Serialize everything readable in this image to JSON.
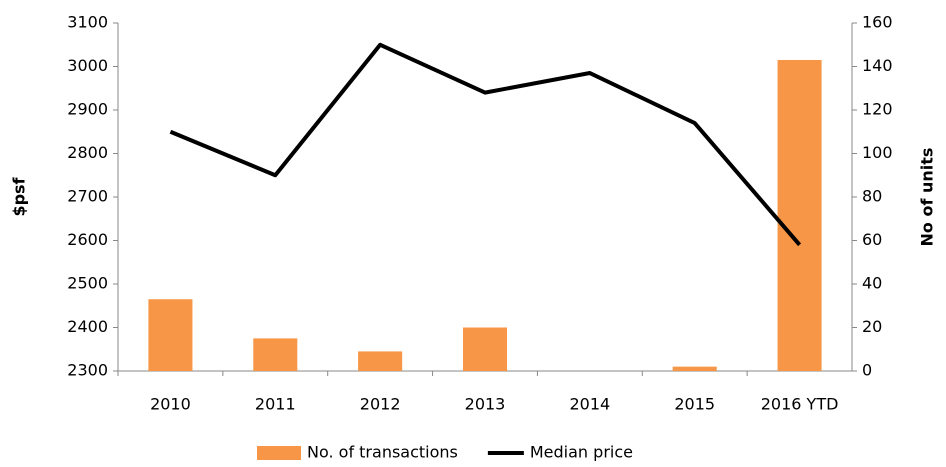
{
  "chart_data": {
    "type": "combo",
    "categories": [
      "2010",
      "2011",
      "2012",
      "2013",
      "2014",
      "2015",
      "2016 YTD"
    ],
    "series": [
      {
        "name": "No. of transactions",
        "type": "bar",
        "axis": "y2",
        "color": "#f79646",
        "values": [
          33,
          15,
          9,
          20,
          0,
          2,
          143
        ]
      },
      {
        "name": "Median price",
        "type": "line",
        "axis": "y",
        "color": "#000000",
        "values": [
          2850,
          2750,
          3050,
          2940,
          2985,
          2870,
          2590
        ]
      }
    ],
    "ylabel": "$psf",
    "y2label": "No of units",
    "ylim": [
      2300,
      3100
    ],
    "yticks": [
      2300,
      2400,
      2500,
      2600,
      2700,
      2800,
      2900,
      3000,
      3100
    ],
    "y2lim": [
      0,
      160
    ],
    "y2ticks": [
      0,
      20,
      40,
      60,
      80,
      100,
      120,
      140,
      160
    ],
    "grid": false,
    "legend": "bottom"
  }
}
